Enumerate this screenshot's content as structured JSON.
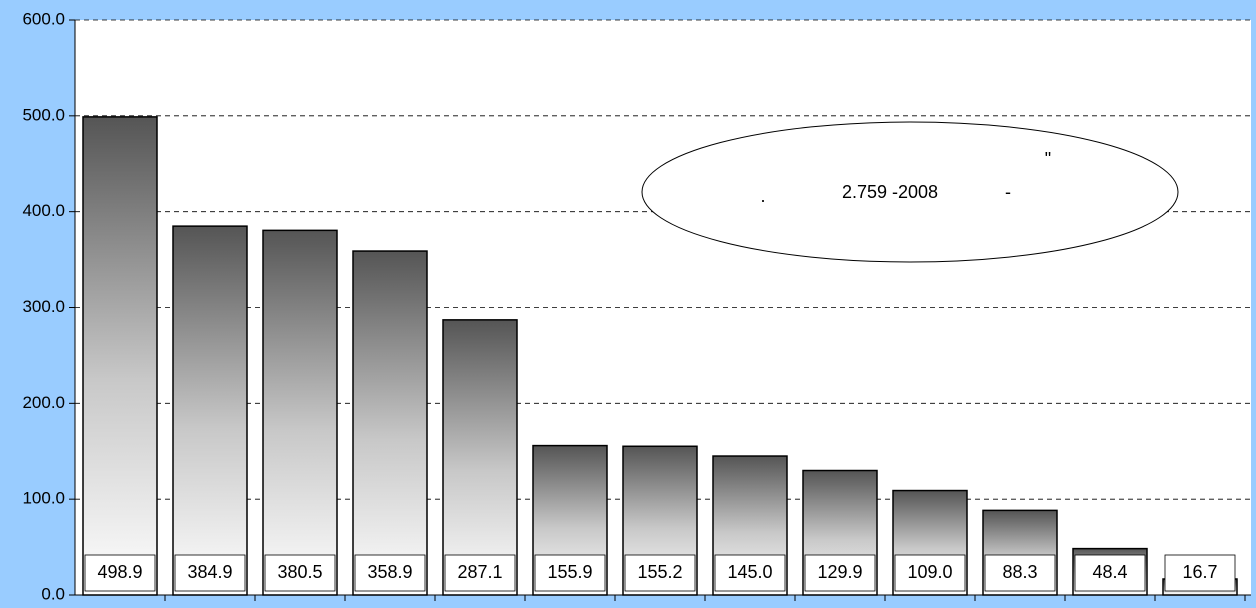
{
  "chart_data": {
    "type": "bar",
    "categories": [
      null,
      null,
      null,
      null,
      null,
      null,
      null,
      null,
      null,
      null,
      null,
      null,
      null
    ],
    "values": [
      498.9,
      384.9,
      380.5,
      358.9,
      287.1,
      155.9,
      155.2,
      145.0,
      129.9,
      109.0,
      88.3,
      48.4,
      16.7
    ],
    "value_labels": [
      "498.9",
      "384.9",
      "380.5",
      "358.9",
      "287.1",
      "155.9",
      "155.2",
      "145.0",
      "129.9",
      "109.0",
      "88.3",
      "48.4",
      "16.7"
    ],
    "color": "#555555",
    "ylim": [
      0,
      600
    ],
    "yticks": [
      {
        "value": 0,
        "label": "0.0"
      },
      {
        "value": 100,
        "label": "100.0"
      },
      {
        "value": 200,
        "label": "200.0"
      },
      {
        "value": 300,
        "label": "300.0"
      },
      {
        "value": 400,
        "label": "400.0"
      },
      {
        "value": 500,
        "label": "500.0"
      },
      {
        "value": 600,
        "label": "600.0"
      }
    ],
    "grid": true,
    "annotations": [
      ".",
      "2.759 -2008",
      "-",
      "\""
    ]
  }
}
